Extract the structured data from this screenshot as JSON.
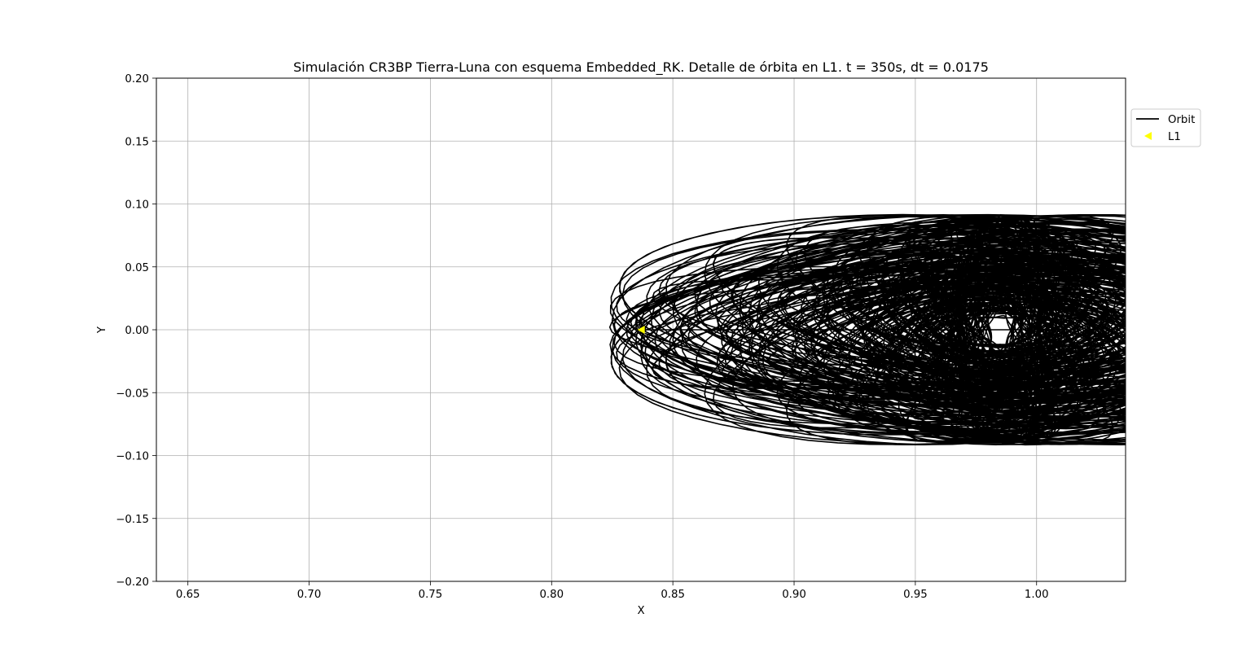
{
  "chart_data": {
    "type": "line",
    "title": "Simulación CR3BP Tierra-Luna con esquema Embedded_RK. Detalle de órbita en L1. t = 350s, dt = 0.0175",
    "xlabel": "X",
    "ylabel": "Y",
    "xlim": [
      0.637,
      1.0367
    ],
    "ylim": [
      -0.2,
      0.2
    ],
    "x_ticks": [
      0.65,
      0.7,
      0.75,
      0.8,
      0.85,
      0.9,
      0.95,
      1.0
    ],
    "x_tick_labels": [
      "0.65",
      "0.70",
      "0.75",
      "0.80",
      "0.85",
      "0.90",
      "0.95",
      "1.00"
    ],
    "y_ticks": [
      0.2,
      0.15,
      0.1,
      0.05,
      0.0,
      -0.05,
      -0.1,
      -0.15,
      -0.2
    ],
    "y_tick_labels": [
      "0.20",
      "0.15",
      "0.10",
      "0.05",
      "0.00",
      "−0.05",
      "−0.10",
      "−0.15",
      "−0.20"
    ],
    "grid": true,
    "legend_position": "outside-top-right",
    "series": [
      {
        "name": "Orbit",
        "style": "line",
        "color": "#000000",
        "center": [
          0.985,
          0.0
        ],
        "x_min": 0.824,
        "x_max_visible": 1.0367,
        "y_range": [
          -0.091,
          0.092
        ],
        "start_point": [
          0.837,
          0.0
        ]
      },
      {
        "name": "L1",
        "style": "marker",
        "marker": "triangle-left",
        "color": "#ffff00",
        "x": 0.8369,
        "y": 0.0
      }
    ]
  }
}
